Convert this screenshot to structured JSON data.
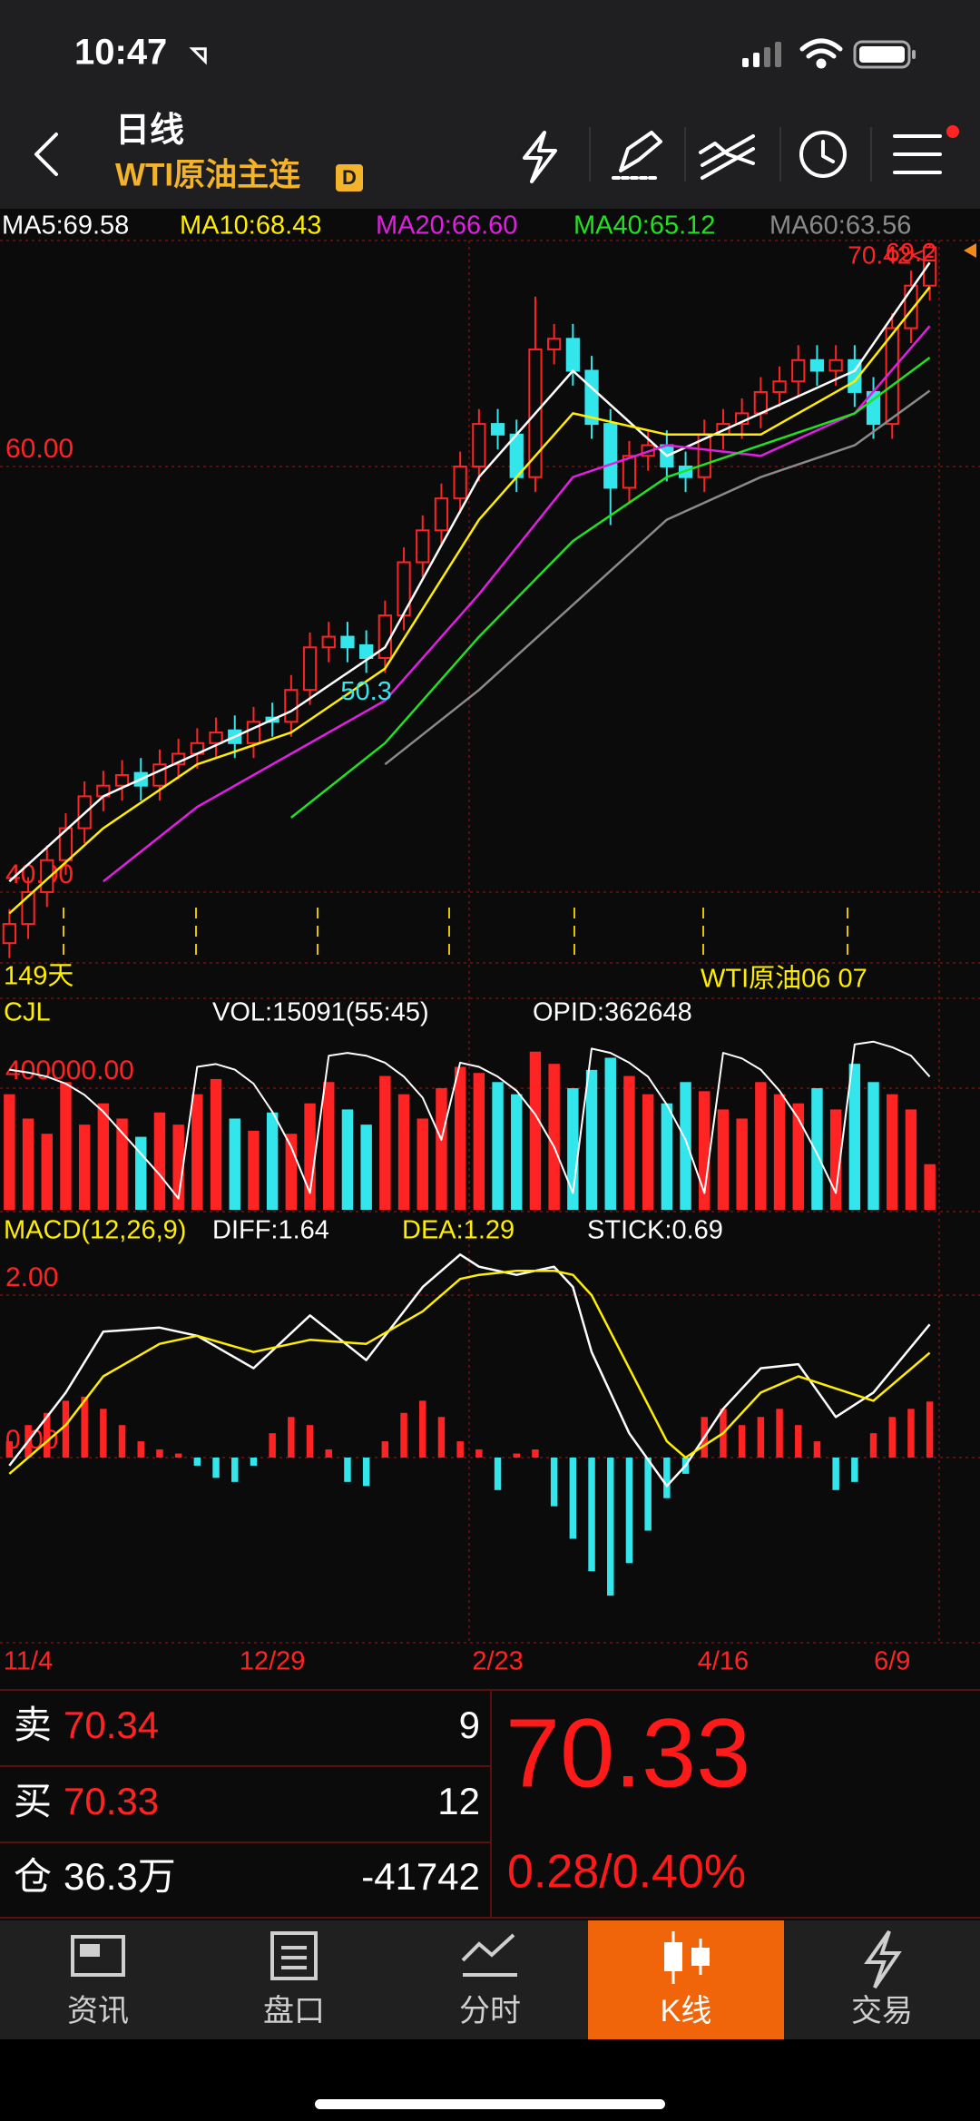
{
  "status_bar": {
    "time": "10:47"
  },
  "header": {
    "title": "日线",
    "subtitle": "WTI原油主连",
    "badge": "D"
  },
  "chart_data": [
    {
      "type": "candlestick",
      "categories": [
        null,
        "11/4",
        null,
        null,
        null,
        null,
        null,
        null,
        null,
        null,
        null,
        null,
        null,
        null,
        "12/29",
        null,
        null,
        null,
        null,
        null,
        null,
        null,
        null,
        null,
        null,
        null,
        "2/23",
        null,
        null,
        null,
        null,
        null,
        null,
        null,
        null,
        null,
        null,
        null,
        "4/16",
        null,
        null,
        null,
        null,
        null,
        null,
        null,
        null,
        "6/9",
        null,
        null
      ],
      "open": [
        37.6,
        38.5,
        40,
        41.5,
        43,
        44.5,
        45,
        45.6,
        45,
        46,
        46.5,
        47,
        47.6,
        47,
        48.2,
        48,
        49.5,
        51.5,
        52,
        51.6,
        51,
        53,
        55.5,
        57,
        58.5,
        60,
        62,
        61.5,
        59.5,
        65.5,
        66,
        64.5,
        62,
        59,
        60.5,
        61,
        60,
        59.5,
        61.5,
        62,
        62.5,
        63.5,
        64,
        65,
        64.5,
        65,
        63.5,
        62,
        66.5,
        68.5
      ],
      "high": [
        39.2,
        40.7,
        42.2,
        43.7,
        45.2,
        45.7,
        46.2,
        46.3,
        46.7,
        47.2,
        47.7,
        48.2,
        48.3,
        48.7,
        48.9,
        50.2,
        52.2,
        52.7,
        52.7,
        52.3,
        53.7,
        56.2,
        57.7,
        59.2,
        60.7,
        62.7,
        62.7,
        62.2,
        67.98,
        66.7,
        66.7,
        65.2,
        62.7,
        61.2,
        61.7,
        61.7,
        60.7,
        62.2,
        62.7,
        63.2,
        64.2,
        64.7,
        65.7,
        65.7,
        65.7,
        65.7,
        64.2,
        67.2,
        69.2,
        70.42
      ],
      "low": [
        36.9,
        37.8,
        39.3,
        40.8,
        42.3,
        43.8,
        44.3,
        44.3,
        44.3,
        45.3,
        45.8,
        46.3,
        46.3,
        46.3,
        47.3,
        47.3,
        48.8,
        50.8,
        50.8,
        50.3,
        50.3,
        52.3,
        54.8,
        56.3,
        57.8,
        59.3,
        60.8,
        58.8,
        58.8,
        64.8,
        63.8,
        61.3,
        57.25,
        58.3,
        59.8,
        59.3,
        58.8,
        58.8,
        60.8,
        61.3,
        61.8,
        62.8,
        63.3,
        63.8,
        63.8,
        62.8,
        61.3,
        61.3,
        65.8,
        67.8
      ],
      "close": [
        38.5,
        40,
        41.5,
        43,
        44.5,
        45,
        45.5,
        45,
        46,
        46.5,
        47,
        47.5,
        47,
        48,
        48,
        49.5,
        51.5,
        52,
        51.5,
        51,
        53,
        55.5,
        57,
        58.5,
        60,
        62,
        61.5,
        59.5,
        65.5,
        66,
        64.5,
        62,
        59,
        60.5,
        61,
        60,
        59.5,
        61.5,
        62,
        62.5,
        63.5,
        64,
        65,
        64.5,
        65,
        63.5,
        62,
        66.5,
        68.5,
        70.3
      ],
      "up_color": "#ff2424",
      "down_color": "#33e6ec",
      "series": [
        {
          "name": "MA5:69.58",
          "color": "#ffffff",
          "x": [
            0,
            5,
            10,
            15,
            20,
            25,
            30,
            35,
            40,
            45,
            49
          ],
          "values": [
            40.5,
            44.5,
            46.5,
            48.5,
            51.5,
            59.5,
            64.5,
            60.5,
            62.5,
            64.5,
            69.58
          ]
        },
        {
          "name": "MA10:68.43",
          "color": "#ffee00",
          "x": [
            0,
            5,
            10,
            15,
            20,
            25,
            30,
            35,
            40,
            45,
            49
          ],
          "values": [
            39,
            43,
            46,
            47.5,
            50.5,
            57.5,
            62.5,
            61.5,
            61.5,
            64,
            68.43
          ]
        },
        {
          "name": "MA20:66.60",
          "color": "#e020e0",
          "x": [
            0,
            5,
            10,
            15,
            20,
            25,
            30,
            35,
            40,
            45,
            49
          ],
          "values": [
            null,
            40.5,
            44,
            46.5,
            49,
            54,
            59.5,
            61,
            60.5,
            62.5,
            66.6
          ]
        },
        {
          "name": "MA40:65.12",
          "color": "#22e022",
          "x": [
            0,
            5,
            10,
            15,
            20,
            25,
            30,
            35,
            40,
            45,
            49
          ],
          "values": [
            null,
            null,
            null,
            43.5,
            47,
            52,
            56.5,
            59.5,
            61,
            62.5,
            65.12
          ]
        },
        {
          "name": "MA60:63.56",
          "color": "#8a8a8a",
          "x": [
            0,
            5,
            10,
            15,
            20,
            25,
            30,
            35,
            40,
            45,
            49
          ],
          "values": [
            null,
            null,
            null,
            null,
            46,
            49.5,
            53.5,
            57.5,
            59.5,
            61,
            63.56
          ]
        }
      ],
      "ylim": [
        36.67,
        70.62
      ],
      "yticks": [
        {
          "value": 40,
          "label": "40.00"
        },
        {
          "value": 60,
          "label": "60.00"
        }
      ],
      "grid": true,
      "last_high_label": "70.42<-",
      "days_label": "149天",
      "contract_label": "WTI原油06 07"
    },
    {
      "type": "bar",
      "title": "CJL",
      "series": [
        {
          "name": "VOL:15091(55:45)",
          "color": "#ffffff",
          "values": [
            380000,
            300000,
            250000,
            420000,
            280000,
            350000,
            300000,
            240000,
            320000,
            280000,
            380000,
            430000,
            300000,
            260000,
            320000,
            250000,
            350000,
            420000,
            330000,
            280000,
            440000,
            380000,
            300000,
            400000,
            470000,
            450000,
            420000,
            380000,
            520000,
            480000,
            400000,
            460000,
            500000,
            440000,
            380000,
            350000,
            420000,
            390000,
            330000,
            300000,
            420000,
            380000,
            350000,
            400000,
            330000,
            480000,
            420000,
            380000,
            330000,
            150000
          ]
        },
        {
          "name": "OPID:362648",
          "type": "line",
          "axis": "y2",
          "color": "#ffffff",
          "values": [
            350000,
            348000,
            345000,
            340000,
            332000,
            320000,
            305000,
            290000,
            275000,
            258000,
            352000,
            354000,
            350000,
            340000,
            320000,
            295000,
            262000,
            360000,
            362000,
            360000,
            355000,
            345000,
            330000,
            300000,
            355000,
            352000,
            345000,
            335000,
            318000,
            295000,
            262000,
            365000,
            362000,
            355000,
            345000,
            325000,
            300000,
            262000,
            362000,
            358000,
            350000,
            335000,
            315000,
            290000,
            262000,
            368000,
            370000,
            366000,
            360000,
            345000
          ]
        }
      ],
      "ylim": [
        0,
        576000
      ],
      "yticks": [
        {
          "value": 400000,
          "label": "400000.00"
        }
      ],
      "y2lim": [
        250000,
        375000
      ]
    },
    {
      "type": "macd",
      "title": "MACD(12,26,9)",
      "series": [
        {
          "name": "DIFF:1.64",
          "type": "line",
          "color": "#ffffff",
          "x": [
            0,
            3,
            5,
            8,
            10,
            13,
            16,
            19,
            22,
            24,
            25,
            27,
            29,
            30,
            31,
            33,
            35,
            36,
            38,
            40,
            42,
            44,
            46,
            49
          ],
          "values": [
            -0.1,
            0.8,
            1.55,
            1.6,
            1.5,
            1.1,
            1.75,
            1.2,
            2.1,
            2.5,
            2.35,
            2.25,
            2.35,
            2.1,
            1.3,
            0.3,
            -0.35,
            -0.1,
            0.6,
            1.1,
            1.15,
            0.5,
            0.8,
            1.64
          ]
        },
        {
          "name": "DEA:1.29",
          "type": "line",
          "color": "#ffee00",
          "x": [
            0,
            3,
            5,
            8,
            10,
            13,
            16,
            19,
            22,
            24,
            25,
            27,
            29,
            30,
            31,
            33,
            35,
            36,
            38,
            40,
            42,
            44,
            46,
            49
          ],
          "values": [
            -0.2,
            0.4,
            1.0,
            1.4,
            1.5,
            1.3,
            1.45,
            1.4,
            1.8,
            2.2,
            2.25,
            2.3,
            2.3,
            2.25,
            2.0,
            1.1,
            0.2,
            0.0,
            0.3,
            0.8,
            1.0,
            0.85,
            0.7,
            1.29
          ]
        },
        {
          "name": "STICK:0.69",
          "type": "bar",
          "color": "#ffffff",
          "values": [
            0.2,
            0.4,
            0.55,
            0.7,
            0.75,
            0.6,
            0.4,
            0.2,
            0.1,
            0.05,
            -0.1,
            -0.25,
            -0.3,
            -0.1,
            0.3,
            0.5,
            0.4,
            0.1,
            -0.3,
            -0.35,
            0.2,
            0.55,
            0.7,
            0.5,
            0.2,
            0.1,
            -0.4,
            0.05,
            0.1,
            -0.6,
            -1.0,
            -1.4,
            -1.7,
            -1.3,
            -0.9,
            -0.5,
            -0.2,
            0.5,
            0.6,
            0.4,
            0.5,
            0.6,
            0.4,
            0.2,
            -0.4,
            -0.3,
            0.3,
            0.5,
            0.6,
            0.69
          ]
        }
      ],
      "pos_color": "#ff2424",
      "neg_color": "#33e6ec",
      "ylim": [
        -2.28,
        2.47
      ],
      "yticks": [
        {
          "value": 0,
          "label": "0.00"
        },
        {
          "value": 2,
          "label": "2.00"
        }
      ]
    }
  ],
  "quote": {
    "ask_label": "卖",
    "ask": 70.34,
    "ask_size": 9,
    "bid_label": "买",
    "bid": 70.33,
    "bid_size": 12,
    "oi_label": "仓",
    "oi": "36.3万",
    "oi_change": -41742,
    "last": 70.33,
    "change": "0.28/0.40%"
  },
  "tabs": [
    {
      "label": "资讯"
    },
    {
      "label": "盘口"
    },
    {
      "label": "分时"
    },
    {
      "label": "K线",
      "active": true
    },
    {
      "label": "交易"
    }
  ]
}
